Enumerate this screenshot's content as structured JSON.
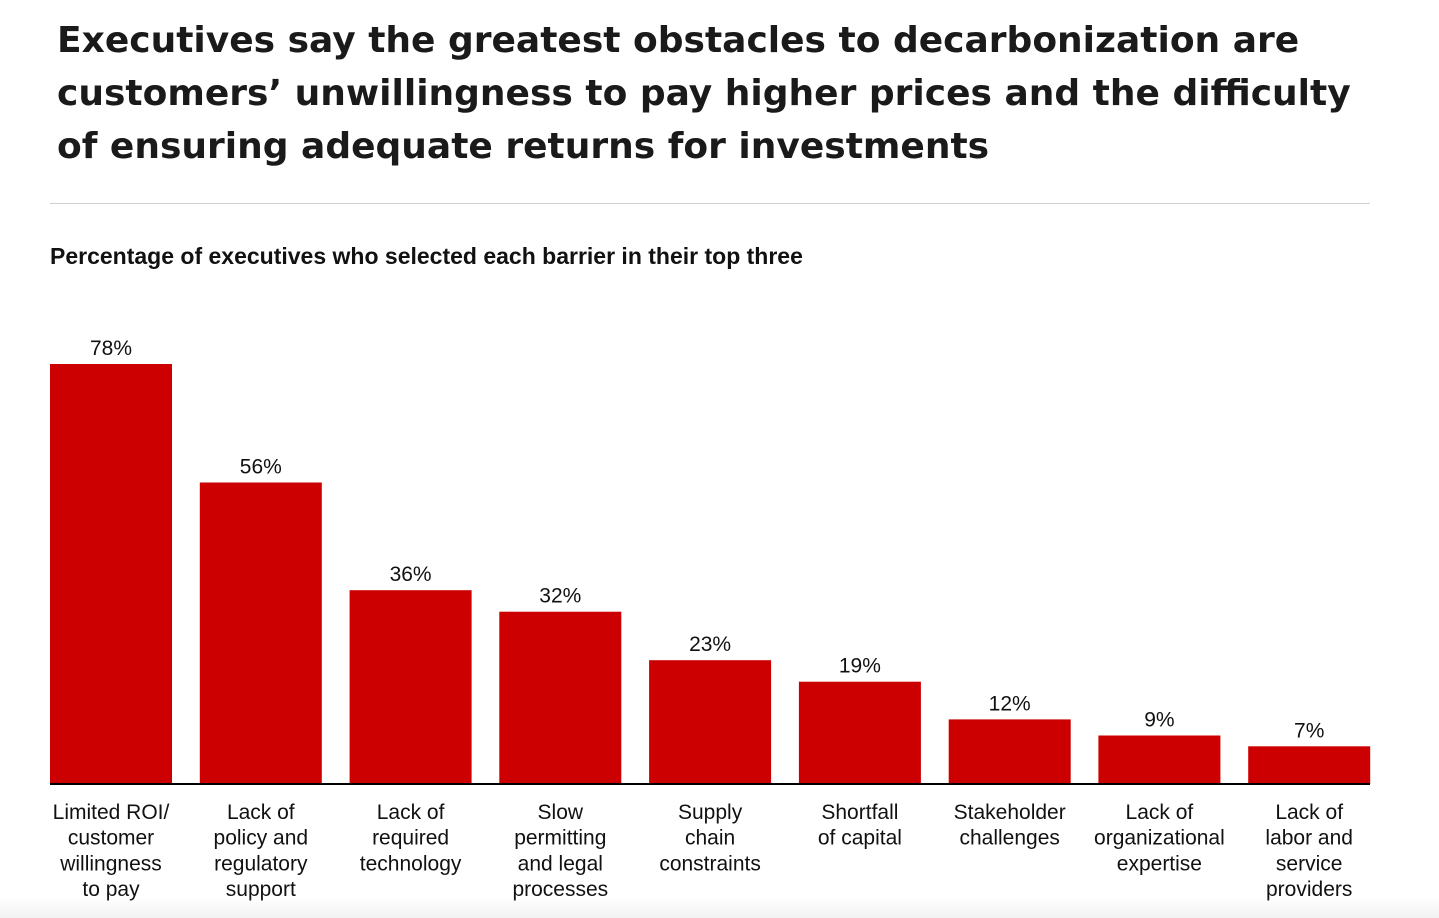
{
  "headline": "Executives say the greatest obstacles to decarbonization are customers’ unwillingness to pay higher prices and the difficulty of ensuring adequate returns for investments",
  "colors": {
    "bar": "#cc0000",
    "baseline": "#000000",
    "text": "#111111"
  },
  "chart_data": {
    "type": "bar",
    "title": "Percentage of executives who selected each barrier in their top three",
    "xlabel": "",
    "ylabel": "",
    "ylim": [
      0,
      78
    ],
    "grid": false,
    "legend": "none",
    "categories": [
      [
        "Limited ROI/",
        "customer",
        "willingness",
        "to pay"
      ],
      [
        "Lack of",
        "policy and",
        "regulatory",
        "support"
      ],
      [
        "Lack of",
        "required",
        "technology"
      ],
      [
        "Slow",
        "permitting",
        "and legal",
        "processes"
      ],
      [
        "Supply",
        "chain",
        "constraints"
      ],
      [
        "Shortfall",
        "of capital"
      ],
      [
        "Stakeholder",
        "challenges"
      ],
      [
        "Lack of",
        "organizational",
        "expertise"
      ],
      [
        "Lack of",
        "labor and",
        "service",
        "providers"
      ]
    ],
    "values": [
      78,
      56,
      36,
      32,
      23,
      19,
      12,
      9,
      7
    ],
    "value_labels": [
      "78%",
      "56%",
      "36%",
      "32%",
      "23%",
      "19%",
      "12%",
      "9%",
      "7%"
    ]
  }
}
